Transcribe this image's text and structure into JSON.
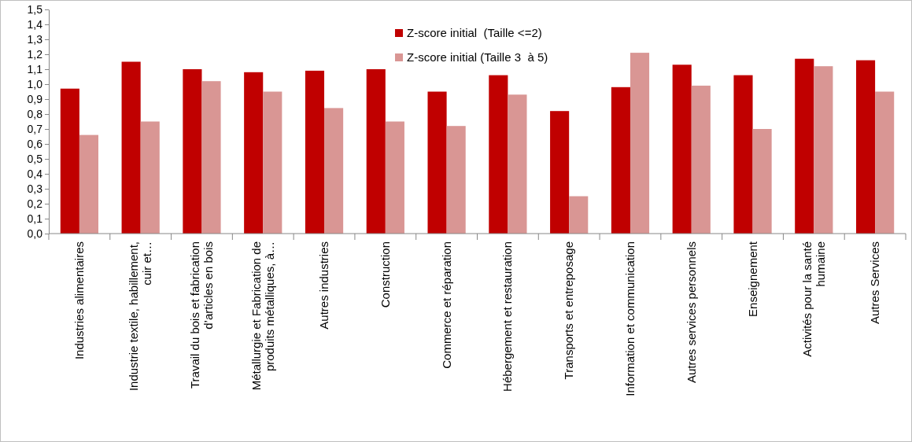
{
  "chart_data": {
    "type": "bar",
    "categories": [
      "Industries alimentaires",
      "Industrie textile, habillement, cuir et…",
      "Travail du bois et fabrication d’articles en bois",
      "Métallurgie et Fabrication de produits métalliques, à…",
      "Autres industries",
      "Construction",
      "Commerce et réparation",
      "Hébergement et restauration",
      "Transports et entreposage",
      "Information et communication",
      "Autres services personnels",
      "Enseignement",
      "Activités pour la santé humaine",
      "Autres Services"
    ],
    "series": [
      {
        "name": "Z-score initial  (Taille <=2)",
        "color": "#c00000",
        "values": [
          0.97,
          1.15,
          1.1,
          1.08,
          1.09,
          1.1,
          0.95,
          1.06,
          0.82,
          0.98,
          1.13,
          1.06,
          1.17,
          1.16
        ]
      },
      {
        "name": "Z-score initial (Taille 3  à 5)",
        "color": "#d99694",
        "values": [
          0.66,
          0.75,
          1.02,
          0.95,
          0.84,
          0.75,
          0.72,
          0.93,
          0.25,
          1.21,
          0.99,
          0.7,
          1.12,
          0.95
        ]
      }
    ],
    "ylim": [
      0,
      1.5
    ],
    "yticks": [
      {
        "value": 0,
        "label": "0,0"
      },
      {
        "value": 0.1,
        "label": "0,1"
      },
      {
        "value": 0.2,
        "label": "0,2"
      },
      {
        "value": 0.3,
        "label": "0,3"
      },
      {
        "value": 0.4,
        "label": "0,4"
      },
      {
        "value": 0.5,
        "label": "0,5"
      },
      {
        "value": 0.6,
        "label": "0,6"
      },
      {
        "value": 0.7,
        "label": "0,7"
      },
      {
        "value": 0.8,
        "label": "0,8"
      },
      {
        "value": 0.9,
        "label": "0,9"
      },
      {
        "value": 1.0,
        "label": "1,0"
      },
      {
        "value": 1.1,
        "label": "1,1"
      },
      {
        "value": 1.2,
        "label": "1,2"
      },
      {
        "value": 1.3,
        "label": "1,3"
      },
      {
        "value": 1.4,
        "label": "1,4"
      },
      {
        "value": 1.5,
        "label": "1,5"
      }
    ],
    "legend": "top"
  }
}
